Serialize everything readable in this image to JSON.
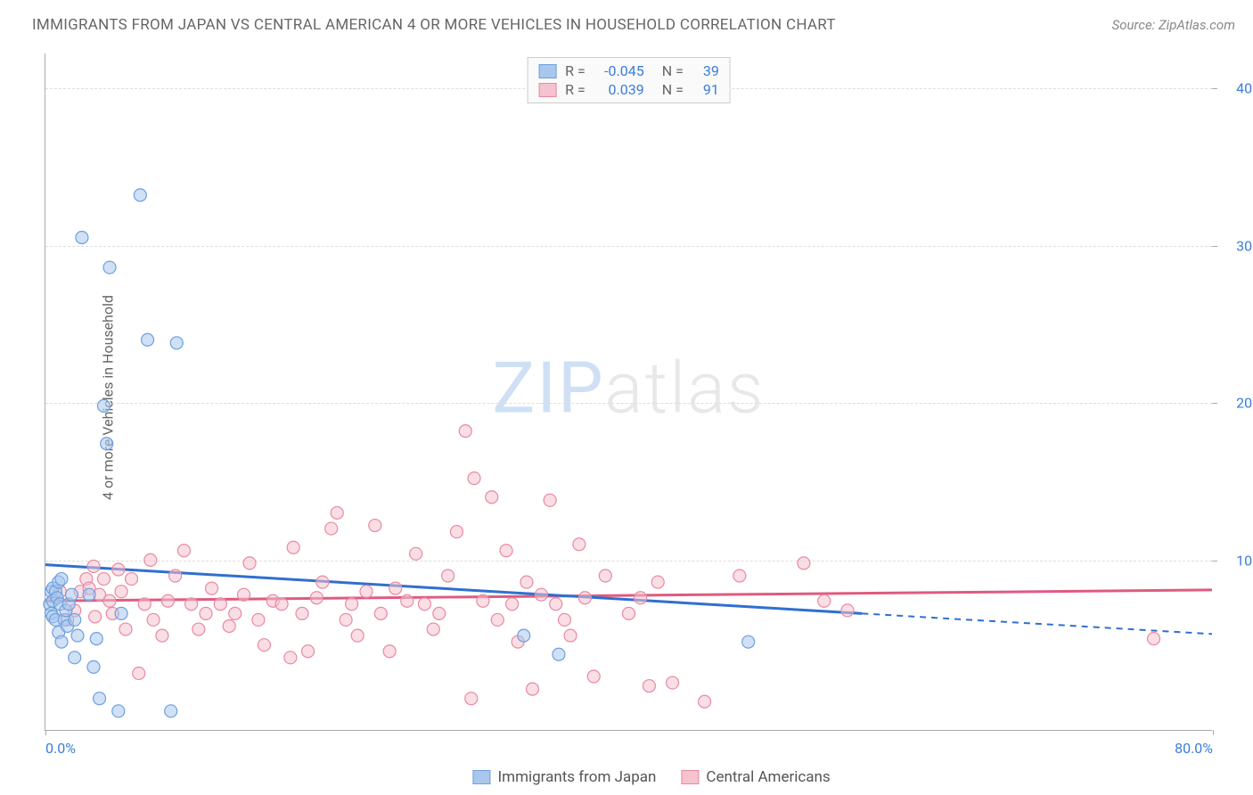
{
  "title": "IMMIGRANTS FROM JAPAN VS CENTRAL AMERICAN 4 OR MORE VEHICLES IN HOUSEHOLD CORRELATION CHART",
  "title_fontsize": 17,
  "title_color": "#666666",
  "source_label": "Source: ZipAtlas.com",
  "source_fontsize": 15,
  "source_color": "#888888",
  "ylabel": "4 or more Vehicles in Household",
  "ylabel_fontsize": 16,
  "ylabel_color": "#666666",
  "watermark_zip": "ZIP",
  "watermark_atlas": "atlas",
  "chart": {
    "type": "scatter",
    "xlim": [
      0,
      80
    ],
    "ylim": [
      0,
      43
    ],
    "xtick_labels": [
      {
        "pos": 0,
        "label": "0.0%"
      },
      {
        "pos": 80,
        "label": "80.0%"
      }
    ],
    "ytick_labels": [
      {
        "pos": 10.8,
        "label": "10.0%"
      },
      {
        "pos": 20.8,
        "label": "20.0%"
      },
      {
        "pos": 30.8,
        "label": "30.0%"
      },
      {
        "pos": 40.8,
        "label": "40.0%"
      }
    ],
    "grid_positions_y": [
      10.8,
      20.8,
      30.8,
      40.8
    ],
    "grid_color": "#dddddd",
    "background_color": "#ffffff",
    "tick_label_color": "#3b7dd8",
    "tick_label_fontsize": 16,
    "marker_radius": 7,
    "marker_stroke_width": 1.2,
    "line_width_solid": 3,
    "line_width_dashed": 2,
    "series": [
      {
        "name": "Immigrants from Japan",
        "fill_color": "#a9c7ec",
        "stroke_color": "#6da0de",
        "line_color": "#2f6fd0",
        "fill_opacity": 0.55,
        "R": "-0.045",
        "N": "39",
        "trend_solid": {
          "x1": 0,
          "y1": 10.5,
          "x2": 56,
          "y2": 7.4
        },
        "trend_dashed": {
          "x1": 56,
          "y1": 7.4,
          "x2": 80,
          "y2": 6.1
        },
        "points": [
          [
            0.3,
            8.0
          ],
          [
            0.4,
            8.8
          ],
          [
            0.4,
            7.4
          ],
          [
            0.5,
            9.0
          ],
          [
            0.5,
            8.2
          ],
          [
            0.5,
            7.2
          ],
          [
            0.7,
            7.0
          ],
          [
            0.7,
            8.8
          ],
          [
            0.8,
            8.4
          ],
          [
            0.9,
            9.4
          ],
          [
            0.9,
            6.2
          ],
          [
            1.0,
            8.0
          ],
          [
            1.1,
            9.6
          ],
          [
            1.1,
            5.6
          ],
          [
            1.3,
            7.0
          ],
          [
            1.4,
            7.6
          ],
          [
            1.5,
            6.6
          ],
          [
            1.6,
            8.0
          ],
          [
            1.8,
            8.6
          ],
          [
            2.0,
            4.6
          ],
          [
            2.0,
            7.0
          ],
          [
            2.2,
            6.0
          ],
          [
            2.5,
            31.3
          ],
          [
            3.0,
            8.6
          ],
          [
            3.3,
            4.0
          ],
          [
            3.5,
            5.8
          ],
          [
            3.7,
            2.0
          ],
          [
            4.0,
            20.6
          ],
          [
            4.2,
            18.2
          ],
          [
            4.4,
            29.4
          ],
          [
            5.0,
            1.2
          ],
          [
            5.2,
            7.4
          ],
          [
            6.5,
            34.0
          ],
          [
            7.0,
            24.8
          ],
          [
            8.6,
            1.2
          ],
          [
            9.0,
            24.6
          ],
          [
            32.8,
            6.0
          ],
          [
            35.2,
            4.8
          ],
          [
            48.2,
            5.6
          ]
        ]
      },
      {
        "name": "Central Americans",
        "fill_color": "#f4c3cf",
        "stroke_color": "#e88aa0",
        "line_color": "#e05a80",
        "fill_opacity": 0.55,
        "R": "0.039",
        "N": "91",
        "trend_solid": {
          "x1": 0,
          "y1": 8.2,
          "x2": 80,
          "y2": 8.9
        },
        "trend_dashed": null,
        "points": [
          [
            1.0,
            8.8
          ],
          [
            1.5,
            7.0
          ],
          [
            2.0,
            7.6
          ],
          [
            2.4,
            8.8
          ],
          [
            2.8,
            9.6
          ],
          [
            3.0,
            9.0
          ],
          [
            3.3,
            10.4
          ],
          [
            3.4,
            7.2
          ],
          [
            3.7,
            8.6
          ],
          [
            4.0,
            9.6
          ],
          [
            4.4,
            8.2
          ],
          [
            4.6,
            7.4
          ],
          [
            5.0,
            10.2
          ],
          [
            5.2,
            8.8
          ],
          [
            5.5,
            6.4
          ],
          [
            5.9,
            9.6
          ],
          [
            6.4,
            3.6
          ],
          [
            6.8,
            8.0
          ],
          [
            7.2,
            10.8
          ],
          [
            7.4,
            7.0
          ],
          [
            8.0,
            6.0
          ],
          [
            8.4,
            8.2
          ],
          [
            8.9,
            9.8
          ],
          [
            9.5,
            11.4
          ],
          [
            10.0,
            8.0
          ],
          [
            10.5,
            6.4
          ],
          [
            11.0,
            7.4
          ],
          [
            11.4,
            9.0
          ],
          [
            12.0,
            8.0
          ],
          [
            12.6,
            6.6
          ],
          [
            13.0,
            7.4
          ],
          [
            13.6,
            8.6
          ],
          [
            14.0,
            10.6
          ],
          [
            14.6,
            7.0
          ],
          [
            15.0,
            5.4
          ],
          [
            15.6,
            8.2
          ],
          [
            16.2,
            8.0
          ],
          [
            16.8,
            4.6
          ],
          [
            17.0,
            11.6
          ],
          [
            17.6,
            7.4
          ],
          [
            18.0,
            5.0
          ],
          [
            18.6,
            8.4
          ],
          [
            19.0,
            9.4
          ],
          [
            19.6,
            12.8
          ],
          [
            20.0,
            13.8
          ],
          [
            20.6,
            7.0
          ],
          [
            21.0,
            8.0
          ],
          [
            21.4,
            6.0
          ],
          [
            22.0,
            8.8
          ],
          [
            22.6,
            13.0
          ],
          [
            23.0,
            7.4
          ],
          [
            23.6,
            5.0
          ],
          [
            24.0,
            9.0
          ],
          [
            24.8,
            8.2
          ],
          [
            25.4,
            11.2
          ],
          [
            26.0,
            8.0
          ],
          [
            26.6,
            6.4
          ],
          [
            27.0,
            7.4
          ],
          [
            27.6,
            9.8
          ],
          [
            28.2,
            12.6
          ],
          [
            28.8,
            19.0
          ],
          [
            29.2,
            2.0
          ],
          [
            29.4,
            16.0
          ],
          [
            30.0,
            8.2
          ],
          [
            30.6,
            14.8
          ],
          [
            31.0,
            7.0
          ],
          [
            31.6,
            11.4
          ],
          [
            32.0,
            8.0
          ],
          [
            32.4,
            5.6
          ],
          [
            33.0,
            9.4
          ],
          [
            33.4,
            2.6
          ],
          [
            34.0,
            8.6
          ],
          [
            34.6,
            14.6
          ],
          [
            35.0,
            8.0
          ],
          [
            35.6,
            7.0
          ],
          [
            36.0,
            6.0
          ],
          [
            36.6,
            11.8
          ],
          [
            37.0,
            8.4
          ],
          [
            37.6,
            3.4
          ],
          [
            38.4,
            9.8
          ],
          [
            40.0,
            7.4
          ],
          [
            40.8,
            8.4
          ],
          [
            41.4,
            2.8
          ],
          [
            42.0,
            9.4
          ],
          [
            43.0,
            3.0
          ],
          [
            45.2,
            1.8
          ],
          [
            47.6,
            9.8
          ],
          [
            52.0,
            10.6
          ],
          [
            53.4,
            8.2
          ],
          [
            55.0,
            7.6
          ],
          [
            76.0,
            5.8
          ]
        ]
      }
    ],
    "legend_top": {
      "stat_r_label": "R =",
      "stat_n_label": "N =",
      "stat_label_color": "#666666",
      "stat_value_color": "#3b7dd8"
    },
    "legend_bottom_label_color": "#555555"
  }
}
